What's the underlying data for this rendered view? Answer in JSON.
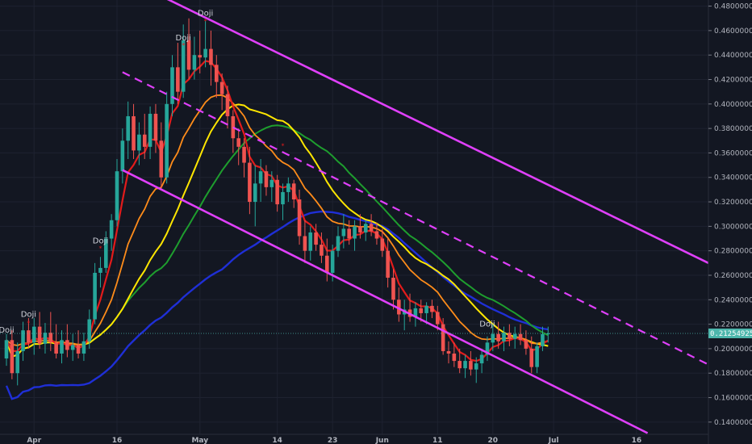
{
  "chart_data": {
    "type": "candlestick",
    "title": "",
    "ylim": [
      0.13,
      0.485
    ],
    "y_ticks": [
      0.48,
      0.46,
      0.44,
      0.42,
      0.4,
      0.38,
      0.36,
      0.34,
      0.32,
      0.3,
      0.28,
      0.26,
      0.24,
      0.22,
      0.2,
      0.18,
      0.16,
      0.14
    ],
    "y_tick_labels": [
      "0.48000000",
      "0.46000000",
      "0.44000000",
      "0.42000000",
      "0.40000000",
      "0.38000000",
      "0.36000000",
      "0.34000000",
      "0.32000000",
      "0.30000000",
      "0.28000000",
      "0.26000000",
      "0.24000000",
      "0.22000000",
      "0.20000000",
      "0.18000000",
      "0.16000000",
      "0.14000000"
    ],
    "x_labels": [
      {
        "label": "Apr",
        "index": 5
      },
      {
        "label": "16",
        "index": 20
      },
      {
        "label": "May",
        "index": 35
      },
      {
        "label": "14",
        "index": 49
      },
      {
        "label": "23",
        "index": 59
      },
      {
        "label": "Jun",
        "index": 68
      },
      {
        "label": "11",
        "index": 78
      },
      {
        "label": "20",
        "index": 88
      },
      {
        "label": "Jul",
        "index": 99
      },
      {
        "label": "16",
        "index": 114
      }
    ],
    "last_price": "0.21254925",
    "last_price_value": 0.2125,
    "colors": {
      "up": "#26a69a",
      "down": "#ef5350",
      "channel": "#e040fb",
      "ema_red": "#e21b1b",
      "ema_orange": "#ff8c1a",
      "sma_yellow": "#ffe600",
      "sma_green": "#1e9e2e",
      "sma_blue": "#1f2fd6",
      "background": "#131722",
      "price_tag": "#4db6ac"
    },
    "candles": [
      [
        0.192,
        0.212,
        0.186,
        0.207
      ],
      [
        0.207,
        0.215,
        0.175,
        0.18
      ],
      [
        0.18,
        0.205,
        0.17,
        0.198
      ],
      [
        0.198,
        0.222,
        0.19,
        0.215
      ],
      [
        0.215,
        0.225,
        0.2,
        0.205
      ],
      [
        0.205,
        0.225,
        0.195,
        0.218
      ],
      [
        0.218,
        0.23,
        0.2,
        0.204
      ],
      [
        0.204,
        0.221,
        0.196,
        0.213
      ],
      [
        0.213,
        0.23,
        0.198,
        0.205
      ],
      [
        0.205,
        0.22,
        0.192,
        0.196
      ],
      [
        0.196,
        0.215,
        0.188,
        0.207
      ],
      [
        0.207,
        0.22,
        0.193,
        0.199
      ],
      [
        0.199,
        0.212,
        0.19,
        0.203
      ],
      [
        0.203,
        0.215,
        0.192,
        0.196
      ],
      [
        0.196,
        0.213,
        0.19,
        0.206
      ],
      [
        0.206,
        0.232,
        0.2,
        0.224
      ],
      [
        0.224,
        0.27,
        0.22,
        0.262
      ],
      [
        0.262,
        0.275,
        0.25,
        0.266
      ],
      [
        0.266,
        0.296,
        0.262,
        0.29
      ],
      [
        0.29,
        0.31,
        0.28,
        0.305
      ],
      [
        0.305,
        0.355,
        0.3,
        0.345
      ],
      [
        0.345,
        0.38,
        0.335,
        0.37
      ],
      [
        0.37,
        0.402,
        0.355,
        0.39
      ],
      [
        0.39,
        0.4,
        0.355,
        0.362
      ],
      [
        0.362,
        0.385,
        0.35,
        0.375
      ],
      [
        0.375,
        0.392,
        0.355,
        0.365
      ],
      [
        0.365,
        0.398,
        0.355,
        0.392
      ],
      [
        0.392,
        0.4,
        0.36,
        0.37
      ],
      [
        0.37,
        0.385,
        0.33,
        0.34
      ],
      [
        0.34,
        0.41,
        0.335,
        0.4
      ],
      [
        0.4,
        0.44,
        0.39,
        0.43
      ],
      [
        0.43,
        0.45,
        0.4,
        0.41
      ],
      [
        0.41,
        0.465,
        0.405,
        0.452
      ],
      [
        0.452,
        0.47,
        0.42,
        0.428
      ],
      [
        0.428,
        0.455,
        0.42,
        0.44
      ],
      [
        0.44,
        0.46,
        0.425,
        0.438
      ],
      [
        0.438,
        0.468,
        0.43,
        0.445
      ],
      [
        0.445,
        0.46,
        0.415,
        0.432
      ],
      [
        0.432,
        0.44,
        0.405,
        0.418
      ],
      [
        0.418,
        0.425,
        0.395,
        0.408
      ],
      [
        0.408,
        0.415,
        0.38,
        0.39
      ],
      [
        0.39,
        0.395,
        0.36,
        0.372
      ],
      [
        0.372,
        0.38,
        0.35,
        0.365
      ],
      [
        0.365,
        0.372,
        0.34,
        0.352
      ],
      [
        0.352,
        0.365,
        0.31,
        0.32
      ],
      [
        0.32,
        0.35,
        0.3,
        0.335
      ],
      [
        0.335,
        0.355,
        0.32,
        0.345
      ],
      [
        0.345,
        0.35,
        0.325,
        0.332
      ],
      [
        0.332,
        0.345,
        0.32,
        0.338
      ],
      [
        0.338,
        0.342,
        0.312,
        0.318
      ],
      [
        0.318,
        0.335,
        0.305,
        0.328
      ],
      [
        0.328,
        0.34,
        0.32,
        0.335
      ],
      [
        0.335,
        0.338,
        0.315,
        0.322
      ],
      [
        0.322,
        0.33,
        0.285,
        0.292
      ],
      [
        0.292,
        0.305,
        0.27,
        0.28
      ],
      [
        0.28,
        0.3,
        0.272,
        0.295
      ],
      [
        0.295,
        0.302,
        0.28,
        0.285
      ],
      [
        0.285,
        0.295,
        0.27,
        0.276
      ],
      [
        0.276,
        0.29,
        0.255,
        0.262
      ],
      [
        0.262,
        0.285,
        0.255,
        0.28
      ],
      [
        0.28,
        0.3,
        0.275,
        0.292
      ],
      [
        0.292,
        0.31,
        0.282,
        0.298
      ],
      [
        0.298,
        0.305,
        0.285,
        0.29
      ],
      [
        0.29,
        0.305,
        0.28,
        0.3
      ],
      [
        0.3,
        0.31,
        0.29,
        0.295
      ],
      [
        0.295,
        0.305,
        0.288,
        0.302
      ],
      [
        0.302,
        0.31,
        0.292,
        0.296
      ],
      [
        0.296,
        0.303,
        0.285,
        0.29
      ],
      [
        0.29,
        0.298,
        0.275,
        0.28
      ],
      [
        0.28,
        0.29,
        0.25,
        0.258
      ],
      [
        0.258,
        0.265,
        0.232,
        0.24
      ],
      [
        0.24,
        0.25,
        0.222,
        0.228
      ],
      [
        0.228,
        0.24,
        0.215,
        0.232
      ],
      [
        0.232,
        0.245,
        0.222,
        0.226
      ],
      [
        0.226,
        0.238,
        0.218,
        0.233
      ],
      [
        0.233,
        0.24,
        0.222,
        0.229
      ],
      [
        0.229,
        0.238,
        0.22,
        0.235
      ],
      [
        0.235,
        0.24,
        0.225,
        0.23
      ],
      [
        0.23,
        0.235,
        0.215,
        0.22
      ],
      [
        0.22,
        0.225,
        0.195,
        0.198
      ],
      [
        0.198,
        0.206,
        0.188,
        0.196
      ],
      [
        0.196,
        0.205,
        0.185,
        0.19
      ],
      [
        0.19,
        0.2,
        0.18,
        0.184
      ],
      [
        0.184,
        0.195,
        0.176,
        0.19
      ],
      [
        0.19,
        0.198,
        0.178,
        0.183
      ],
      [
        0.183,
        0.193,
        0.172,
        0.188
      ],
      [
        0.188,
        0.2,
        0.18,
        0.195
      ],
      [
        0.195,
        0.21,
        0.19,
        0.205
      ],
      [
        0.205,
        0.22,
        0.198,
        0.212
      ],
      [
        0.212,
        0.222,
        0.2,
        0.206
      ],
      [
        0.206,
        0.218,
        0.198,
        0.213
      ],
      [
        0.213,
        0.22,
        0.202,
        0.208
      ],
      [
        0.208,
        0.218,
        0.2,
        0.212
      ],
      [
        0.212,
        0.22,
        0.203,
        0.207
      ],
      [
        0.207,
        0.215,
        0.195,
        0.2
      ],
      [
        0.2,
        0.21,
        0.18,
        0.185
      ],
      [
        0.185,
        0.205,
        0.18,
        0.202
      ],
      [
        0.202,
        0.218,
        0.198,
        0.212
      ],
      [
        0.212,
        0.218,
        0.205,
        0.2125
      ]
    ],
    "annotations": [
      {
        "label": "Doji",
        "index": 4,
        "price": 0.226
      },
      {
        "label": "Doji",
        "index": 0,
        "price": 0.213
      },
      {
        "label": "Doji",
        "index": 17,
        "price": 0.286
      },
      {
        "label": "Doji",
        "index": 32,
        "price": 0.452
      },
      {
        "label": "Doji",
        "index": 36,
        "price": 0.472
      },
      {
        "label": "Doji",
        "index": 87,
        "price": 0.218
      }
    ],
    "symbols": [
      {
        "text": "*",
        "index": 4,
        "price": 0.219
      },
      {
        "text": "*",
        "index": 17,
        "price": 0.28
      },
      {
        "text": "*",
        "index": 32,
        "price": 0.446
      },
      {
        "text": "*",
        "index": 36,
        "price": 0.466
      },
      {
        "text": "*",
        "index": 50,
        "price": 0.364
      }
    ]
  }
}
